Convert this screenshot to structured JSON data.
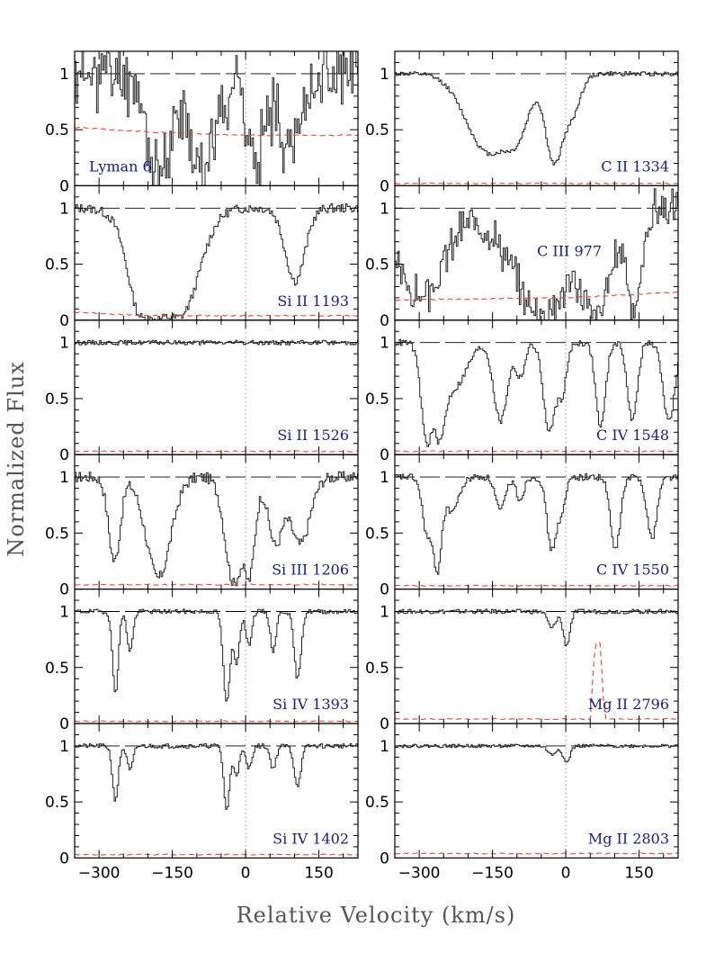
{
  "chart_data": {
    "type": "line",
    "xlabel": "Relative Velocity (km/s)",
    "ylabel": "Normalized Flux",
    "xlim": [
      -350,
      230
    ],
    "ylim": [
      0,
      1.2
    ],
    "x_ticks": [
      -300,
      -150,
      0,
      150
    ],
    "x_tick_labels": [
      "−300",
      "−150",
      "0",
      "150"
    ],
    "y_ticks": [
      0,
      0.5,
      1
    ],
    "y_tick_labels": [
      "0",
      "0.5",
      "1"
    ],
    "continuum_level": 1.0,
    "reference_velocity": 0,
    "grid": false,
    "layout": {
      "columns": 2,
      "rows": 6
    },
    "series_styles": {
      "flux": {
        "color": "#000000",
        "style": "histogram"
      },
      "error": {
        "color": "#e8463c",
        "style": "dashed"
      },
      "continuum": {
        "color": "#000000",
        "style": "long-dashed"
      },
      "zero_line": {
        "color": "#808080",
        "style": "dotted",
        "note": "v=0"
      }
    },
    "panels": [
      {
        "id": "lyman6",
        "col": 0,
        "row": 0,
        "label": "Lyman 6",
        "profile": "noisy",
        "noise": 0.22,
        "continuum": 1.0,
        "seed": 11,
        "dips": [
          [
            -180,
            0.9,
            25
          ],
          [
            -90,
            0.8,
            30
          ],
          [
            20,
            0.9,
            15
          ],
          [
            90,
            0.6,
            25
          ]
        ],
        "error": [
          [
            -350,
            0.52
          ],
          [
            -200,
            0.48
          ],
          [
            0,
            0.45
          ],
          [
            230,
            0.45
          ]
        ]
      },
      {
        "id": "cii1334",
        "col": 1,
        "row": 0,
        "label": "C II 1334",
        "profile": "smooth",
        "noise": 0.02,
        "continuum": 1.0,
        "seed": 12,
        "dips": [
          [
            -160,
            0.7,
            45
          ],
          [
            -105,
            0.5,
            25
          ],
          [
            -25,
            0.8,
            18
          ],
          [
            10,
            0.35,
            18
          ]
        ],
        "error": [
          [
            -350,
            0.02
          ],
          [
            230,
            0.02
          ]
        ]
      },
      {
        "id": "siii1193",
        "col": 0,
        "row": 1,
        "label": "Si II 1193",
        "profile": "smooth",
        "noise": 0.04,
        "continuum": 1.0,
        "seed": 13,
        "dips": [
          [
            -185,
            0.97,
            42
          ],
          [
            -140,
            0.95,
            40
          ],
          [
            -210,
            0.9,
            22
          ],
          [
            100,
            0.65,
            20
          ]
        ],
        "error": [
          [
            -350,
            0.07
          ],
          [
            -200,
            0.04
          ],
          [
            230,
            0.04
          ]
        ]
      },
      {
        "id": "ciii977",
        "col": 1,
        "row": 1,
        "label": "C III 977",
        "profile": "noisy",
        "noise": 0.12,
        "continuum": 1.0,
        "seed": 14,
        "dips": [
          [
            -300,
            0.8,
            50
          ],
          [
            -50,
            0.95,
            60
          ],
          [
            60,
            0.95,
            30
          ],
          [
            140,
            0.9,
            15
          ]
        ],
        "error": [
          [
            -350,
            0.18
          ],
          [
            0,
            0.2
          ],
          [
            230,
            0.25
          ]
        ]
      },
      {
        "id": "siii1526",
        "col": 0,
        "row": 2,
        "label": "Si II 1526",
        "profile": "flat",
        "noise": 0.02,
        "continuum": 1.0,
        "seed": 15,
        "dips": [],
        "error": [
          [
            -350,
            0.03
          ],
          [
            230,
            0.03
          ]
        ]
      },
      {
        "id": "civ1548",
        "col": 1,
        "row": 2,
        "label": "C IV 1548",
        "profile": "smooth",
        "noise": 0.03,
        "continuum": 1.0,
        "seed": 16,
        "dips": [
          [
            -285,
            0.9,
            12
          ],
          [
            -260,
            0.85,
            12
          ],
          [
            -230,
            0.4,
            25
          ],
          [
            -135,
            0.7,
            14
          ],
          [
            -95,
            0.3,
            10
          ],
          [
            -35,
            0.8,
            12
          ],
          [
            -10,
            0.45,
            10
          ],
          [
            70,
            0.75,
            10
          ],
          [
            135,
            0.7,
            10
          ],
          [
            210,
            0.7,
            12
          ]
        ],
        "error": [
          [
            -350,
            0.03
          ],
          [
            230,
            0.03
          ]
        ]
      },
      {
        "id": "siiii1206",
        "col": 0,
        "row": 3,
        "label": "Si III 1206",
        "profile": "noisy",
        "noise": 0.05,
        "continuum": 1.0,
        "seed": 17,
        "dips": [
          [
            -270,
            0.75,
            12
          ],
          [
            -180,
            0.9,
            25
          ],
          [
            -25,
            0.95,
            18
          ],
          [
            5,
            0.9,
            12
          ],
          [
            60,
            0.6,
            15
          ],
          [
            110,
            0.6,
            20
          ]
        ],
        "error": [
          [
            -350,
            0.04
          ],
          [
            230,
            0.04
          ]
        ]
      },
      {
        "id": "civ1550",
        "col": 1,
        "row": 3,
        "label": "C IV 1550",
        "profile": "smooth",
        "noise": 0.03,
        "continuum": 1.0,
        "seed": 18,
        "dips": [
          [
            -285,
            0.5,
            10
          ],
          [
            -265,
            0.85,
            9
          ],
          [
            -235,
            0.3,
            15
          ],
          [
            -135,
            0.3,
            10
          ],
          [
            -95,
            0.2,
            8
          ],
          [
            -30,
            0.65,
            10
          ],
          [
            -10,
            0.3,
            8
          ],
          [
            100,
            0.65,
            10
          ],
          [
            175,
            0.55,
            10
          ]
        ],
        "error": [
          [
            -350,
            0.03
          ],
          [
            230,
            0.03
          ]
        ]
      },
      {
        "id": "siiv1393",
        "col": 0,
        "row": 4,
        "label": "Si IV 1393",
        "profile": "smooth",
        "noise": 0.02,
        "continuum": 1.0,
        "seed": 19,
        "dips": [
          [
            -268,
            0.72,
            6
          ],
          [
            -238,
            0.35,
            6
          ],
          [
            -40,
            0.82,
            7
          ],
          [
            -20,
            0.45,
            6
          ],
          [
            5,
            0.3,
            6
          ],
          [
            55,
            0.35,
            6
          ],
          [
            105,
            0.6,
            7
          ]
        ],
        "error": [
          [
            -350,
            0.02
          ],
          [
            230,
            0.02
          ]
        ]
      },
      {
        "id": "mgii2796",
        "col": 1,
        "row": 4,
        "label": "Mg II 2796",
        "profile": "noisy",
        "noise": 0.02,
        "continuum": 1.0,
        "seed": 20,
        "dips": [
          [
            -30,
            0.15,
            8
          ],
          [
            0,
            0.3,
            7
          ]
        ],
        "error": [
          [
            -350,
            0.04
          ],
          [
            50,
            0.04
          ],
          [
            60,
            0.72
          ],
          [
            70,
            0.72
          ],
          [
            80,
            0.04
          ],
          [
            230,
            0.04
          ]
        ]
      },
      {
        "id": "siiv1402",
        "col": 0,
        "row": 5,
        "label": "Si IV 1402",
        "profile": "smooth",
        "noise": 0.02,
        "continuum": 1.0,
        "seed": 21,
        "dips": [
          [
            -268,
            0.48,
            6
          ],
          [
            -238,
            0.22,
            6
          ],
          [
            -40,
            0.57,
            6
          ],
          [
            -20,
            0.25,
            6
          ],
          [
            5,
            0.2,
            6
          ],
          [
            55,
            0.2,
            6
          ],
          [
            105,
            0.35,
            7
          ]
        ],
        "error": [
          [
            -350,
            0.03
          ],
          [
            230,
            0.03
          ]
        ]
      },
      {
        "id": "mgii2803",
        "col": 1,
        "row": 5,
        "label": "Mg II 2803",
        "profile": "noisy",
        "noise": 0.015,
        "continuum": 1.0,
        "seed": 22,
        "dips": [
          [
            -30,
            0.08,
            8
          ],
          [
            0,
            0.15,
            7
          ]
        ],
        "error": [
          [
            -350,
            0.04
          ],
          [
            230,
            0.04
          ]
        ]
      }
    ]
  }
}
